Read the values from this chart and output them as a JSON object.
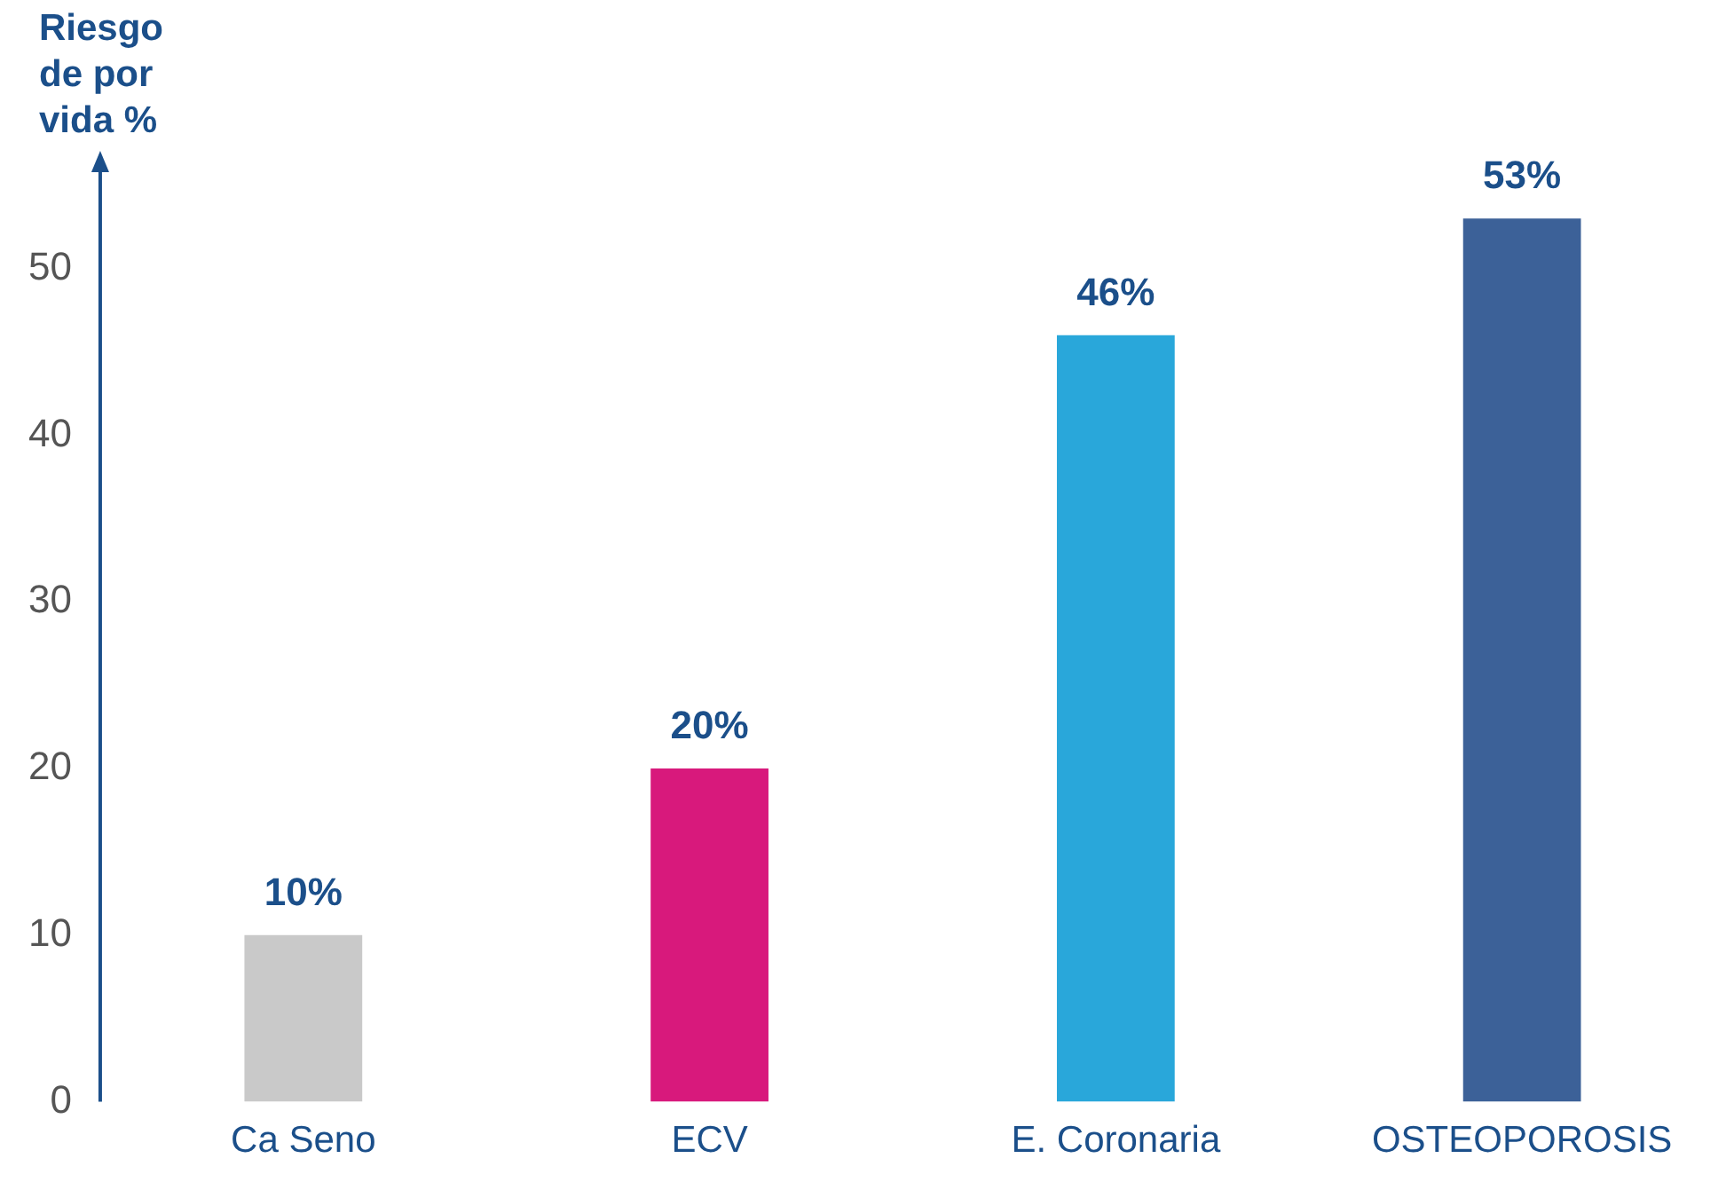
{
  "chart_data": {
    "type": "bar",
    "ylabel": "Riesgo de por vida %",
    "categories": [
      "Ca Seno",
      "ECV",
      "E. Coronaria",
      "OSTEOPOROSIS"
    ],
    "values": [
      10,
      20,
      46,
      53
    ],
    "colors": [
      "#c9c9c9",
      "#d8197c",
      "#29a7da",
      "#3c6198"
    ],
    "value_labels": [
      "10%",
      "20%",
      "46%",
      "53%"
    ],
    "ylim": [
      0,
      56
    ],
    "yticks": [
      0,
      10,
      20,
      30,
      40,
      50
    ],
    "grid": false,
    "legend": false
  }
}
